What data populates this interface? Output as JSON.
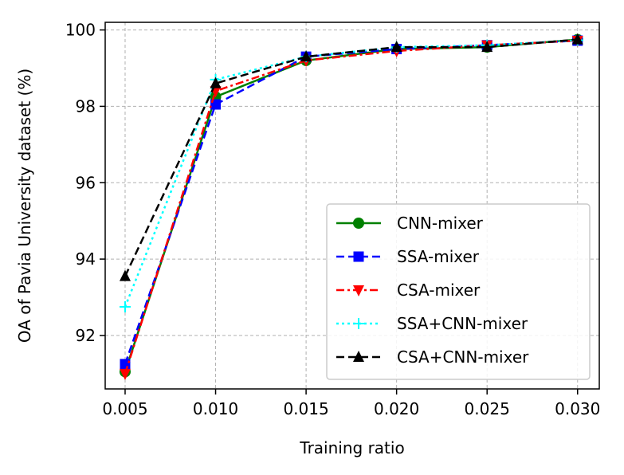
{
  "chart_data": {
    "type": "line",
    "title": "",
    "xlabel": "Training ratio",
    "ylabel": "OA of Pavia University dataset (%)",
    "x": [
      0.005,
      0.01,
      0.015,
      0.02,
      0.025,
      0.03
    ],
    "x_tick_labels": [
      "0.005",
      "0.010",
      "0.015",
      "0.020",
      "0.025",
      "0.030"
    ],
    "y_ticks": [
      92,
      94,
      96,
      98,
      100
    ],
    "y_tick_labels": [
      "92",
      "94",
      "96",
      "98",
      "100"
    ],
    "xlim": [
      0.0039,
      0.0312
    ],
    "ylim": [
      90.6,
      100.2
    ],
    "grid": true,
    "legend_position": "lower-right",
    "series": [
      {
        "name": "CNN-mixer",
        "color": "#008000",
        "dash": "solid",
        "marker": "circle",
        "values": [
          91.05,
          98.25,
          99.2,
          99.5,
          99.55,
          99.75
        ]
      },
      {
        "name": "SSA-mixer",
        "color": "#0000ff",
        "dash": "dashed",
        "marker": "square",
        "values": [
          91.25,
          98.05,
          99.3,
          99.5,
          99.6,
          99.72
        ]
      },
      {
        "name": "CSA-mixer",
        "color": "#ff0000",
        "dash": "dashdot",
        "marker": "triangle-down",
        "values": [
          91.0,
          98.4,
          99.2,
          99.45,
          99.6,
          99.72
        ]
      },
      {
        "name": "SSA+CNN-mixer",
        "color": "#00ffff",
        "dash": "dotted",
        "marker": "plus",
        "values": [
          92.75,
          98.7,
          99.3,
          99.55,
          99.6,
          99.73
        ]
      },
      {
        "name": "CSA+CNN-mixer",
        "color": "#000000",
        "dash": "dashed",
        "marker": "triangle-up",
        "values": [
          93.55,
          98.6,
          99.3,
          99.55,
          99.55,
          99.75
        ]
      }
    ]
  }
}
